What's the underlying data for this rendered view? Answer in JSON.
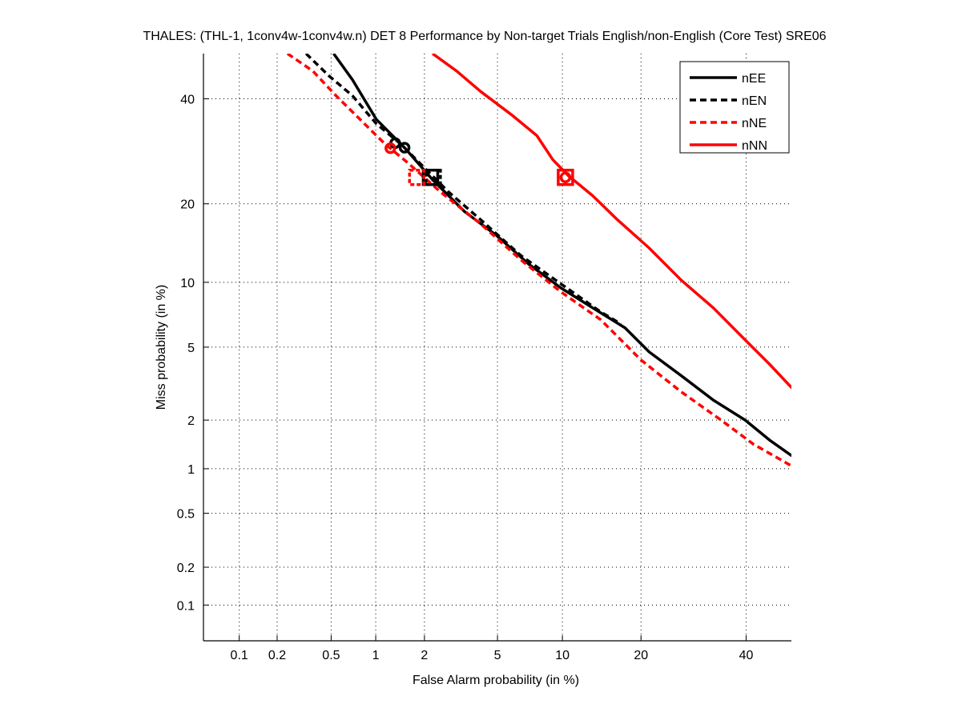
{
  "chart_data": {
    "type": "line",
    "title": "THALES: (THL-1, 1conv4w-1conv4w.n) DET 8 Performance by Non-target Trials English/non-English (Core Test) SRE06",
    "xlabel": "False Alarm probability (in %)",
    "ylabel": "Miss probability (in %)",
    "scale": "probit",
    "xlim": [
      0.05,
      50
    ],
    "ylim": [
      0.05,
      50
    ],
    "grid": true,
    "legend_position": "top-right",
    "xticks": [
      0.1,
      0.2,
      0.5,
      1,
      2,
      5,
      10,
      20,
      40
    ],
    "xtick_labels": [
      "0.1",
      "0.2",
      "0.5",
      "1",
      "2",
      "5",
      "10",
      "20",
      "40"
    ],
    "yticks": [
      0.1,
      0.2,
      0.5,
      1,
      2,
      5,
      10,
      20,
      40
    ],
    "ytick_labels": [
      "0.1",
      "0.2",
      "0.5",
      "1",
      "2",
      "5",
      "10",
      "20",
      "40"
    ],
    "series": [
      {
        "name": "nEE",
        "color": "#000000",
        "style": "solid",
        "x": [
          0.52,
          0.7,
          1.01,
          1.52,
          2.23,
          3.37,
          4.95,
          7.08,
          9.85,
          13.3,
          17.6,
          21.3,
          26.9,
          33.1,
          39.8,
          45.1,
          50.1
        ],
        "y": [
          50.0,
          44.2,
          35.6,
          29.9,
          24.0,
          18.8,
          15.4,
          11.9,
          9.46,
          7.71,
          6.21,
          4.73,
          3.55,
          2.61,
          2.0,
          1.52,
          1.21
        ],
        "min_dcf": [
          1.52,
          29.9
        ],
        "act_dcf": [
          2.17,
          24.4
        ]
      },
      {
        "name": "nEN",
        "color": "#000000",
        "style": "dashed",
        "x": [
          0.33,
          0.48,
          0.7,
          1.01,
          1.43,
          2.11,
          2.75,
          4.1,
          6.49,
          9.85,
          14.3,
          17.0
        ],
        "y": [
          50.0,
          45.1,
          40.7,
          34.7,
          30.7,
          25.4,
          21.9,
          17.6,
          12.9,
          9.85,
          7.39,
          6.49
        ],
        "min_dcf": [
          1.33,
          30.8
        ],
        "act_dcf": [
          2.25,
          24.4
        ]
      },
      {
        "name": "nNE",
        "color": "#ff0000",
        "style": "dashed",
        "x": [
          0.24,
          0.37,
          0.54,
          0.79,
          1.14,
          1.61,
          2.48,
          4.1,
          6.49,
          9.85,
          14.3,
          20.0,
          26.9,
          34.7,
          41.6,
          50.1
        ],
        "y": [
          50.0,
          46.1,
          40.7,
          35.6,
          30.7,
          26.9,
          21.9,
          17.0,
          12.4,
          9.09,
          6.79,
          4.3,
          2.9,
          2.0,
          1.43,
          1.04
        ],
        "min_dcf": [
          1.24,
          29.8
        ],
        "act_dcf": [
          1.8,
          24.4
        ]
      },
      {
        "name": "nNN",
        "color": "#ff0000",
        "style": "solid",
        "x": [
          2.23,
          3.05,
          4.1,
          5.94,
          7.71,
          9.09,
          10.6,
          13.3,
          16.5,
          21.3,
          26.9,
          33.1,
          39.8,
          45.1,
          50.1
        ],
        "y": [
          50.0,
          46.1,
          41.6,
          36.4,
          32.3,
          27.6,
          24.7,
          21.3,
          17.6,
          13.8,
          10.2,
          7.71,
          5.43,
          4.1,
          3.05
        ],
        "min_dcf": [
          10.3,
          24.4
        ],
        "act_dcf": [
          10.3,
          24.4
        ]
      }
    ]
  }
}
